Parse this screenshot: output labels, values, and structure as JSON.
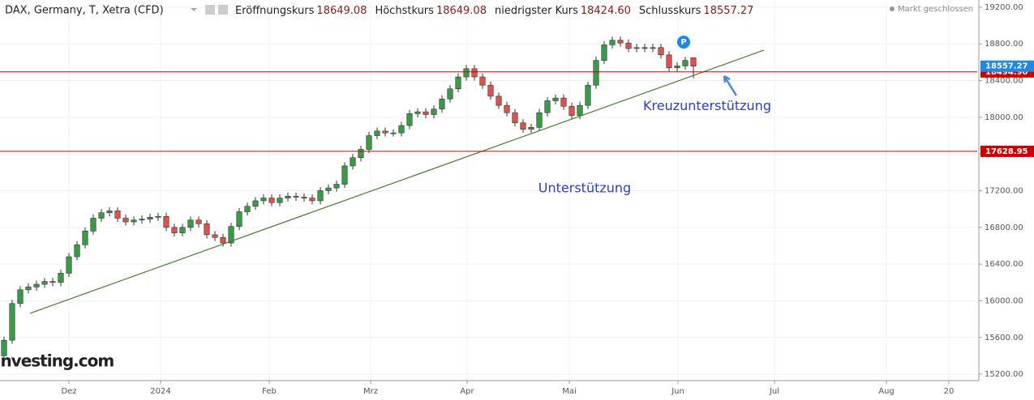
{
  "chart_data": {
    "type": "candlestick",
    "header": {
      "title": "DAX, Germany, T, Xetra (CFD)",
      "fields": [
        {
          "label": "Eröffnungskurs",
          "value": "18649.08"
        },
        {
          "label": "Höchstkurs",
          "value": "18649.08"
        },
        {
          "label": "niedrigster Kurs",
          "value": "18424.60"
        },
        {
          "label": "Schlusskurs",
          "value": "18557.27"
        }
      ],
      "status": "Markt geschlossen"
    },
    "logo": "Investing.com",
    "x": [
      0,
      1,
      2,
      3,
      4,
      5,
      6,
      7,
      8,
      9,
      10,
      11,
      12,
      13,
      14,
      15,
      16,
      17,
      18,
      19,
      20,
      21,
      22,
      23,
      24,
      25,
      26,
      27,
      28,
      29,
      30,
      31,
      32,
      33,
      34,
      35,
      36,
      37,
      38,
      39,
      40,
      41,
      42,
      43,
      44,
      45,
      46,
      47,
      48,
      49,
      50,
      51,
      52,
      53,
      54,
      55,
      56,
      57,
      58,
      59,
      60,
      61,
      62,
      63,
      64,
      65,
      66,
      67,
      68,
      69,
      70,
      71,
      72,
      73,
      74,
      75,
      76,
      77,
      78,
      79,
      80,
      81,
      82,
      83,
      84,
      85
    ],
    "open": [
      15400,
      15570,
      15970,
      16120,
      16150,
      16180,
      16210,
      16200,
      16300,
      16480,
      16610,
      16760,
      16900,
      16960,
      16980,
      16900,
      16860,
      16880,
      16890,
      16910,
      16920,
      16800,
      16740,
      16800,
      16880,
      16840,
      16720,
      16690,
      16630,
      16810,
      16970,
      17030,
      17090,
      17120,
      17070,
      17120,
      17140,
      17130,
      17120,
      17090,
      17200,
      17230,
      17270,
      17470,
      17560,
      17650,
      17800,
      17850,
      17830,
      17830,
      17910,
      18040,
      18060,
      18030,
      18090,
      18200,
      18310,
      18440,
      18530,
      18440,
      18350,
      18230,
      18130,
      18050,
      17940,
      17870,
      17890,
      18050,
      18180,
      18210,
      18120,
      18020,
      18130,
      18350,
      18620,
      18790,
      18840,
      18810,
      18750,
      18760,
      18750,
      18760,
      18680,
      18540,
      18560,
      18649.08
    ],
    "high": [
      15610,
      16010,
      16160,
      16190,
      16220,
      16250,
      16250,
      16340,
      16520,
      16650,
      16800,
      16940,
      17000,
      17020,
      17020,
      16940,
      16920,
      16930,
      16950,
      16960,
      16960,
      16840,
      16840,
      16920,
      16920,
      16880,
      16760,
      16730,
      16850,
      17010,
      17070,
      17130,
      17160,
      17160,
      17160,
      17180,
      17180,
      17170,
      17160,
      17240,
      17270,
      17310,
      17510,
      17600,
      17690,
      17840,
      17890,
      17890,
      17870,
      17950,
      18080,
      18100,
      18100,
      18130,
      18240,
      18350,
      18480,
      18570,
      18570,
      18480,
      18390,
      18270,
      18170,
      18090,
      17980,
      17930,
      18090,
      18220,
      18250,
      18250,
      18160,
      18170,
      18390,
      18660,
      18830,
      18880,
      18880,
      18850,
      18800,
      18800,
      18800,
      18800,
      18720,
      18600,
      18660,
      18649.08
    ],
    "low": [
      15360,
      15530,
      15930,
      16080,
      16110,
      16140,
      16160,
      16160,
      16260,
      16440,
      16570,
      16720,
      16860,
      16920,
      16860,
      16820,
      16820,
      16840,
      16850,
      16870,
      16760,
      16700,
      16700,
      16760,
      16800,
      16680,
      16650,
      16590,
      16590,
      16770,
      16930,
      16990,
      17050,
      17030,
      17030,
      17080,
      17090,
      17080,
      17050,
      17050,
      17160,
      17190,
      17230,
      17430,
      17520,
      17610,
      17760,
      17790,
      17790,
      17790,
      17870,
      18000,
      17990,
      17990,
      18050,
      18160,
      18270,
      18400,
      18400,
      18310,
      18190,
      18090,
      18010,
      17900,
      17830,
      17830,
      17850,
      18010,
      18140,
      18080,
      17980,
      17980,
      18090,
      18310,
      18580,
      18750,
      18770,
      18710,
      18710,
      18710,
      18710,
      18640,
      18500,
      18500,
      18520,
      18424.6
    ],
    "close": [
      15570,
      15970,
      16120,
      16150,
      16180,
      16210,
      16200,
      16300,
      16480,
      16610,
      16760,
      16900,
      16960,
      16980,
      16900,
      16860,
      16880,
      16890,
      16910,
      16920,
      16800,
      16740,
      16800,
      16880,
      16840,
      16720,
      16690,
      16630,
      16810,
      16970,
      17030,
      17090,
      17120,
      17070,
      17120,
      17140,
      17130,
      17120,
      17090,
      17200,
      17230,
      17270,
      17470,
      17560,
      17650,
      17800,
      17850,
      17830,
      17830,
      17910,
      18040,
      18060,
      18030,
      18090,
      18200,
      18310,
      18440,
      18530,
      18440,
      18350,
      18230,
      18130,
      18050,
      17940,
      17870,
      17890,
      18050,
      18180,
      18210,
      18120,
      18020,
      18130,
      18350,
      18620,
      18790,
      18840,
      18810,
      18750,
      18760,
      18750,
      18760,
      18680,
      18540,
      18560,
      18620,
      18557.27
    ],
    "up_color": "#3a9a4a",
    "down_color": "#d9534f",
    "xlim": [
      -0.5,
      120
    ],
    "xticks": [
      {
        "value": 8,
        "label": "Dez"
      },
      {
        "value": 19.3,
        "label": "2024"
      },
      {
        "value": 32.7,
        "label": "Feb"
      },
      {
        "value": 45.2,
        "label": "Mrz"
      },
      {
        "value": 57.1,
        "label": "Apr"
      },
      {
        "value": 69.7,
        "label": "Mai"
      },
      {
        "value": 83.1,
        "label": "Jun"
      },
      {
        "value": 95,
        "label": "Jul"
      },
      {
        "value": 108.8,
        "label": "Aug"
      },
      {
        "value": 116.5,
        "label": "20"
      }
    ],
    "ylim": [
      15130,
      19270
    ],
    "yticks": [
      {
        "value": 15200,
        "label": "15200.00"
      },
      {
        "value": 15600,
        "label": "15600.00"
      },
      {
        "value": 16000,
        "label": "16000.00"
      },
      {
        "value": 16400,
        "label": "16400.00"
      },
      {
        "value": 16800,
        "label": "16800.00"
      },
      {
        "value": 17200,
        "label": "17200.00"
      },
      {
        "value": 17600,
        "label": "17600.00"
      },
      {
        "value": 18000,
        "label": "18000.00"
      },
      {
        "value": 18400,
        "label": "18400.00"
      },
      {
        "value": 18800,
        "label": "18800.00"
      },
      {
        "value": 19200,
        "label": "19200.00"
      }
    ],
    "grid": true,
    "hlines": [
      {
        "value": 18494.9,
        "label": "18494.90",
        "color": "#cc0000"
      },
      {
        "value": 17628.95,
        "label": "17628.95",
        "color": "#cc0000"
      }
    ],
    "last_price": {
      "value": 18557.27,
      "label": "18557.27",
      "color": "#1e88e5"
    },
    "trendline": {
      "x": [
        3.2,
        93.7
      ],
      "y": [
        15863,
        18732
      ],
      "color": "#4a7a2a"
    },
    "annotations": [
      {
        "text": "Kreuzunterstützung",
        "x": 86.7,
        "y": 18120
      },
      {
        "text": "Unterstützung",
        "x": 71.6,
        "y": 17220
      }
    ]
  }
}
